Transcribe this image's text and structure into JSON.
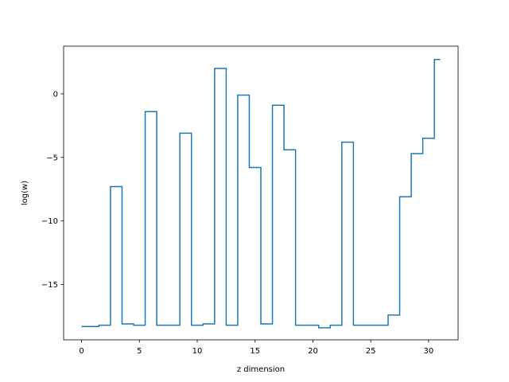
{
  "chart_data": {
    "type": "line",
    "drawstyle": "steps-mid",
    "title": "",
    "xlabel": "z dimension",
    "ylabel": "log(w)",
    "xlim": [
      -1.55,
      32.55
    ],
    "ylim": [
      -19.35,
      3.75
    ],
    "xticks": [
      0,
      5,
      10,
      15,
      20,
      25,
      30
    ],
    "yticks": [
      -15,
      -10,
      -5,
      0
    ],
    "grid": false,
    "legend": "none",
    "colors": {
      "series": "#1f77b4",
      "axes": "#000000",
      "background": "#ffffff"
    },
    "series": [
      {
        "x": [
          0,
          1,
          2,
          3,
          4,
          5,
          6,
          7,
          8,
          9,
          10,
          11,
          12,
          13,
          14,
          15,
          16,
          17,
          18,
          19,
          20,
          21,
          22,
          23,
          24,
          25,
          26,
          27,
          28,
          29,
          30,
          31
        ],
        "values": [
          -18.3,
          -18.3,
          -18.2,
          -7.3,
          -18.1,
          -18.2,
          -1.4,
          -18.2,
          -18.2,
          -3.1,
          -18.2,
          -18.1,
          2.0,
          -18.2,
          -0.1,
          -5.8,
          -18.1,
          -0.9,
          -4.4,
          -18.2,
          -18.2,
          -18.4,
          -18.2,
          -3.8,
          -18.2,
          -18.2,
          -18.2,
          -17.4,
          -8.1,
          -4.7,
          -3.5,
          2.7
        ]
      }
    ]
  }
}
